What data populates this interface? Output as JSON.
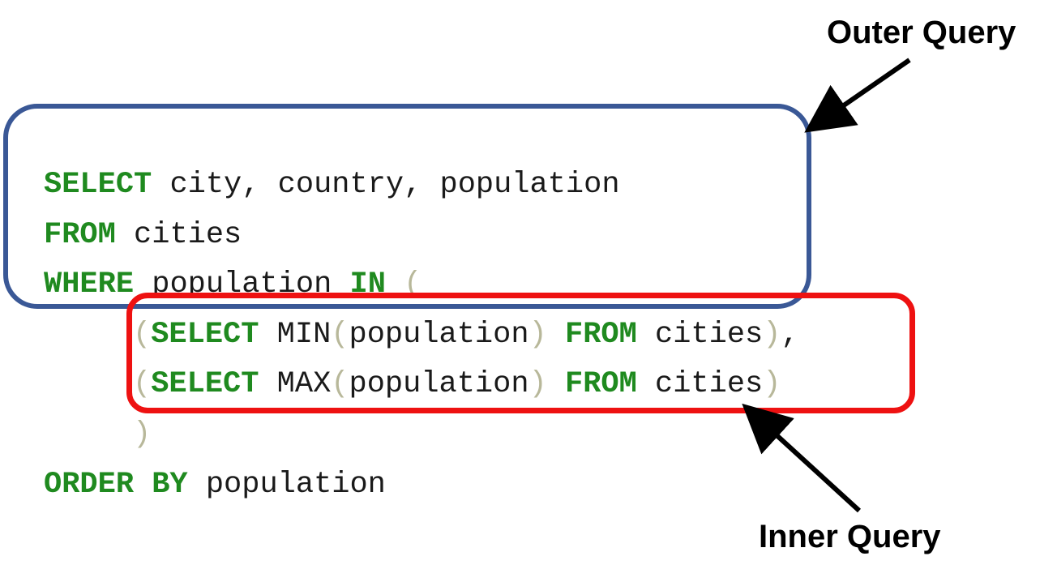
{
  "code": {
    "lines": [
      [
        {
          "text": "SELECT",
          "kind": "keyword"
        },
        {
          "text": " city, country, population",
          "kind": "plain"
        }
      ],
      [
        {
          "text": "FROM",
          "kind": "keyword"
        },
        {
          "text": " cities",
          "kind": "plain"
        }
      ],
      [
        {
          "text": "WHERE",
          "kind": "keyword"
        },
        {
          "text": " population ",
          "kind": "plain"
        },
        {
          "text": "IN",
          "kind": "keyword"
        },
        {
          "text": " ",
          "kind": "plain"
        },
        {
          "text": "(",
          "kind": "paren"
        }
      ],
      [
        {
          "text": "(",
          "kind": "paren",
          "indent": true
        },
        {
          "text": "SELECT",
          "kind": "keyword"
        },
        {
          "text": " MIN",
          "kind": "plain"
        },
        {
          "text": "(",
          "kind": "paren"
        },
        {
          "text": "population",
          "kind": "plain"
        },
        {
          "text": ")",
          "kind": "paren"
        },
        {
          "text": " ",
          "kind": "plain"
        },
        {
          "text": "FROM",
          "kind": "keyword"
        },
        {
          "text": " cities",
          "kind": "plain"
        },
        {
          "text": ")",
          "kind": "paren"
        },
        {
          "text": ",",
          "kind": "plain"
        }
      ],
      [
        {
          "text": "(",
          "kind": "paren",
          "indent": true
        },
        {
          "text": "SELECT",
          "kind": "keyword"
        },
        {
          "text": " MAX",
          "kind": "plain"
        },
        {
          "text": "(",
          "kind": "paren"
        },
        {
          "text": "population",
          "kind": "plain"
        },
        {
          "text": ")",
          "kind": "paren"
        },
        {
          "text": " ",
          "kind": "plain"
        },
        {
          "text": "FROM",
          "kind": "keyword"
        },
        {
          "text": " cities",
          "kind": "plain"
        },
        {
          "text": ")",
          "kind": "paren"
        }
      ],
      [
        {
          "text": ")",
          "kind": "paren",
          "indent": true
        }
      ],
      [
        {
          "text": "ORDER BY",
          "kind": "keyword"
        },
        {
          "text": " population",
          "kind": "plain"
        }
      ]
    ]
  },
  "labels": {
    "outer": "Outer Query",
    "inner": "Inner Query"
  },
  "colors": {
    "keyword": "#1f8a1f",
    "paren": "#b8b89a",
    "outer_box": "#3a5896",
    "inner_box": "#ee1111",
    "arrow": "#000000"
  }
}
